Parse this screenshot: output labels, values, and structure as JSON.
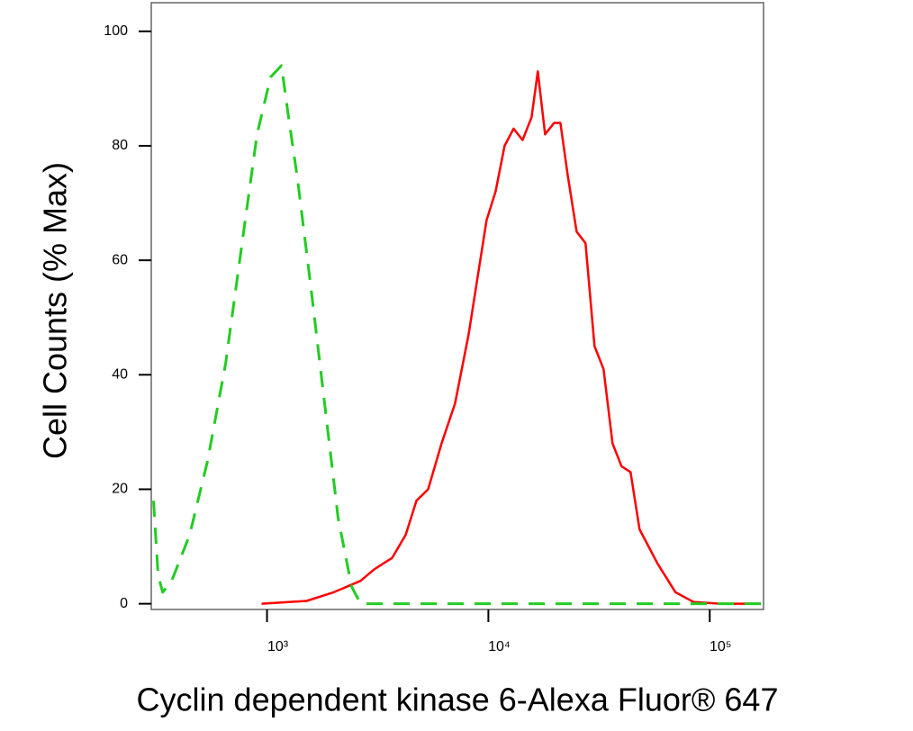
{
  "chart_data": {
    "type": "line",
    "x_label": "Cyclin dependent kinase 6-Alexa Fluor® 647",
    "y_label": "Cell Counts (% Max)",
    "x_scale": "log",
    "xlim": [
      300,
      175000
    ],
    "xticks": [
      {
        "value": 1000,
        "label": "10³"
      },
      {
        "value": 10000,
        "label": "10⁴"
      },
      {
        "value": 100000,
        "label": "10⁵"
      }
    ],
    "ylim": [
      -1,
      105
    ],
    "yticks": [
      0,
      20,
      40,
      60,
      80,
      100
    ],
    "series": [
      {
        "color": "#ff0000",
        "style": "solid",
        "x": [
          945,
          1509,
          2000,
          2648,
          3046,
          3345,
          3673,
          4227,
          4730,
          5342,
          6146,
          7073,
          8140,
          9815,
          10780,
          11840,
          13000,
          14270,
          15670,
          16730,
          18040,
          19810,
          21150,
          22800,
          25030,
          27480,
          30180,
          33140,
          36390,
          39960,
          43880,
          48180,
          58100,
          70050,
          84500,
          111900,
          170500
        ],
        "values": [
          0,
          0.5,
          2,
          4,
          6,
          7,
          8,
          12,
          18,
          20,
          28,
          35,
          47,
          67,
          72,
          80,
          83,
          81,
          85,
          93,
          82,
          84,
          84,
          75,
          65,
          63,
          45,
          41,
          28,
          24,
          23,
          13,
          7,
          2,
          0.3,
          0,
          0
        ]
      },
      {
        "color": "#22cc22",
        "style": "dashed",
        "x": [
          307,
          322,
          338,
          371,
          447,
          539,
          650,
          784,
          902,
          1038,
          1162,
          1252,
          1375,
          1582,
          1820,
          2095,
          2411,
          2648,
          4227,
          170500
        ],
        "values": [
          18,
          5,
          2,
          4,
          12,
          25,
          42,
          65,
          82,
          92,
          94,
          85,
          74,
          55,
          35,
          15,
          3,
          0,
          0,
          0
        ]
      }
    ]
  }
}
